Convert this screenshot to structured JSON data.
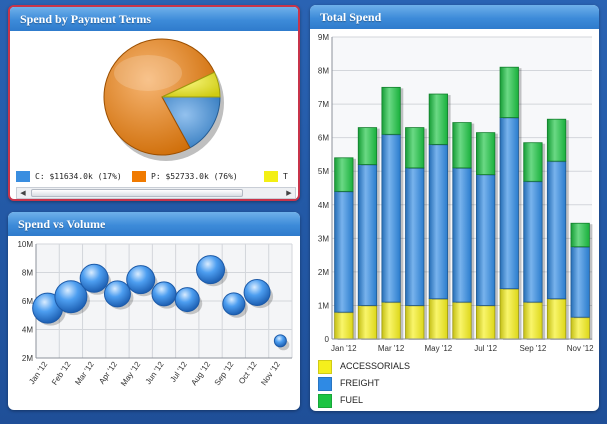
{
  "panels": {
    "payment": {
      "title": "Spend by Payment Terms"
    },
    "volume": {
      "title": "Spend vs Volume"
    },
    "total": {
      "title": "Total Spend"
    }
  },
  "colors": {
    "accessories": "#f5ef1c",
    "freight": "#2f8ae4",
    "fuel": "#1cc443",
    "pie_p": "#f07a00",
    "pie_c": "#3a8ee0",
    "pie_t": "#f3ef14",
    "bubble": "#3e93e6",
    "panel_border": "#c8344a"
  },
  "chart_data": [
    {
      "type": "pie",
      "title": "Spend by Payment Terms",
      "slices": [
        {
          "label": "C: $11634.0k (17%)",
          "key": "C",
          "value": 17,
          "color": "#3a8ee0"
        },
        {
          "label": "P: $52733.0k (76%)",
          "key": "P",
          "value": 76,
          "color": "#f07a00"
        },
        {
          "label": "T",
          "key": "T",
          "value": 7,
          "color": "#f3ef14"
        }
      ]
    },
    {
      "type": "scatter",
      "title": "Spend vs Volume",
      "categories": [
        "Jan '12",
        "Feb '12",
        "Mar '12",
        "Apr '12",
        "May '12",
        "Jun '12",
        "Jul '12",
        "Aug '12",
        "Sep '12",
        "Oct '12",
        "Nov '12"
      ],
      "values": [
        5.5,
        6.3,
        7.6,
        6.5,
        7.5,
        6.5,
        6.1,
        8.2,
        5.8,
        6.6,
        3.2
      ],
      "ylim": [
        2,
        10
      ],
      "yticks": [
        "2M",
        "4M",
        "6M",
        "8M",
        "10M"
      ]
    },
    {
      "type": "bar",
      "title": "Total Spend",
      "stacked": true,
      "categories": [
        "Jan '12",
        "Feb '12",
        "Mar '12",
        "Apr '12",
        "May '12",
        "Jun '12",
        "Jul '12",
        "Aug '12",
        "Sep '12",
        "Oct '12",
        "Nov '12"
      ],
      "xtick_labels": [
        "Jan '12",
        "Mar '12",
        "May '12",
        "Jul '12",
        "Sep '12",
        "Nov '12"
      ],
      "ylim": [
        0,
        9
      ],
      "yticks": [
        "0",
        "1M",
        "2M",
        "3M",
        "4M",
        "5M",
        "6M",
        "7M",
        "8M",
        "9M"
      ],
      "series": [
        {
          "name": "ACCESSORIALS",
          "color": "#f5ef1c",
          "values": [
            0.8,
            1.0,
            1.1,
            1.0,
            1.2,
            1.1,
            1.0,
            1.5,
            1.1,
            1.2,
            0.65
          ]
        },
        {
          "name": "FREIGHT",
          "color": "#2f8ae4",
          "values": [
            3.6,
            4.2,
            5.0,
            4.1,
            4.6,
            4.0,
            3.9,
            5.1,
            3.6,
            4.1,
            2.1
          ]
        },
        {
          "name": "FUEL",
          "color": "#1cc443",
          "values": [
            1.0,
            1.1,
            1.4,
            1.2,
            1.5,
            1.35,
            1.25,
            1.5,
            1.15,
            1.25,
            0.7
          ]
        }
      ]
    }
  ]
}
